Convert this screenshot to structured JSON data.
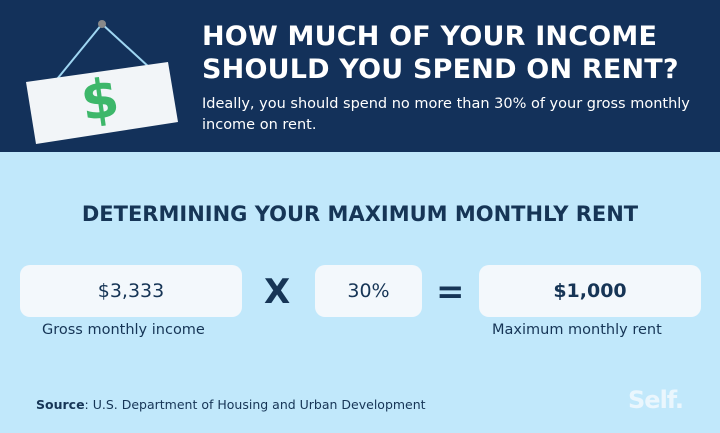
{
  "header": {
    "title_line1": "HOW MUCH OF YOUR INCOME",
    "title_line2": "SHOULD YOU SPEND ON RENT?",
    "subtitle": "Ideally, you should spend no more than 30% of your gross monthly income on rent.",
    "icon": "hanging-dollar-sign-icon"
  },
  "section": {
    "heading": "DETERMINING YOUR MAXIMUM MONTHLY RENT"
  },
  "equation": {
    "income": "$3,333",
    "multiply": "X",
    "percent": "30%",
    "equals": "=",
    "result": "$1,000",
    "income_label": "Gross monthly income",
    "result_label": "Maximum monthly rent"
  },
  "footer": {
    "source_label": "Source",
    "source_text": ": U.S. Department of Housing and Urban Development",
    "logo": "Self."
  },
  "colors": {
    "navy": "#13315a",
    "light_blue": "#c1e8fb",
    "green": "#3db76a"
  }
}
